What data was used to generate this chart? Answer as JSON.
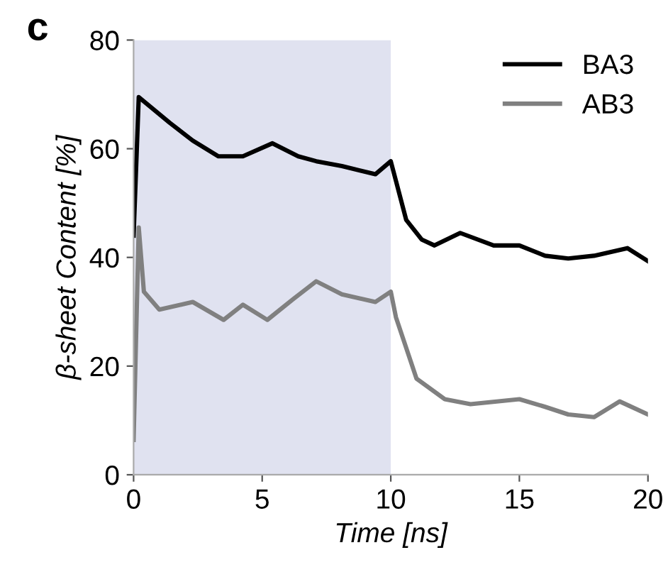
{
  "chart_data": {
    "type": "line",
    "title": "c",
    "xlabel": "Time [ns]",
    "ylabel": "β-sheet Content [%]",
    "xlim": [
      0,
      20
    ],
    "xticks": [
      0,
      5,
      10,
      15,
      20
    ],
    "ylim": [
      0,
      80
    ],
    "yticks": [
      0,
      20,
      40,
      60,
      80
    ],
    "grid": false,
    "legend": "top right",
    "line_style": "solid",
    "marker": "none",
    "bands": [
      {
        "axis": "x",
        "from": 0,
        "to": 10,
        "label": null,
        "color": "#e0e2f0"
      }
    ],
    "series": [
      {
        "name": "BA3",
        "color": "#000000",
        "x": [
          0,
          0.2,
          1.4,
          2.3,
          3.3,
          4.25,
          5.4,
          6.4,
          7.1,
          8.1,
          9.4,
          10,
          10.6,
          11.2,
          11.7,
          12.7,
          14,
          15,
          16,
          16.9,
          17.9,
          19.2,
          20
        ],
        "values": [
          44,
          69.5,
          64.8,
          61.5,
          58.6,
          58.6,
          61,
          58.6,
          57.7,
          56.8,
          55.3,
          57.7,
          46.9,
          43.3,
          42.2,
          44.5,
          42.2,
          42.2,
          40.3,
          39.8,
          40.3,
          41.7,
          39.3
        ]
      },
      {
        "name": "AB3",
        "color": "#808080",
        "x": [
          0,
          0.2,
          0.4,
          1,
          2.3,
          3.5,
          4.25,
          5.2,
          6.2,
          7.1,
          8.1,
          9.4,
          10,
          10.2,
          11,
          12.1,
          13.1,
          15,
          16,
          16.9,
          17.9,
          18.9,
          20
        ],
        "values": [
          6.4,
          45.5,
          33.7,
          30.4,
          31.8,
          28.5,
          31.3,
          28.5,
          32.3,
          35.6,
          33.2,
          31.8,
          33.7,
          29,
          17.7,
          13.9,
          13,
          13.9,
          12.5,
          11.1,
          10.6,
          13.5,
          11.1
        ]
      }
    ]
  }
}
